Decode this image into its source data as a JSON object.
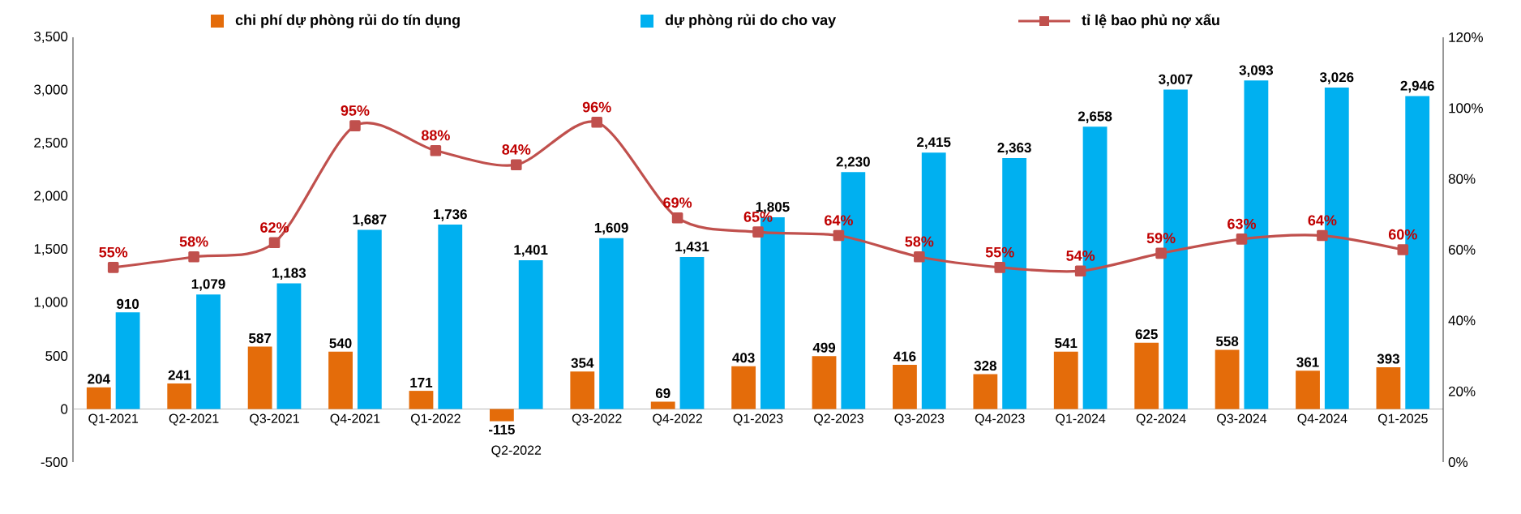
{
  "chart_data": {
    "type": "bar",
    "categories": [
      "Q1-2021",
      "Q2-2021",
      "Q3-2021",
      "Q4-2021",
      "Q1-2022",
      "Q2-2022",
      "Q3-2022",
      "Q4-2022",
      "Q1-2023",
      "Q2-2023",
      "Q3-2023",
      "Q4-2023",
      "Q1-2024",
      "Q2-2024",
      "Q3-2024",
      "Q4-2024",
      "Q1-2025"
    ],
    "series": [
      {
        "name": "chi phí dự phòng rủi do tín dụng",
        "color": "#e46c0a",
        "values": [
          204,
          241,
          587,
          540,
          171,
          -115,
          354,
          69,
          403,
          499,
          416,
          328,
          541,
          625,
          558,
          361,
          393
        ],
        "value_labels": [
          "204",
          "241",
          "587",
          "540",
          "171",
          "-115",
          "354",
          "69",
          "403",
          "499",
          "416",
          "328",
          "541",
          "625",
          "558",
          "361",
          "393"
        ]
      },
      {
        "name": "dự phòng rủi do cho vay",
        "color": "#00b0f0",
        "values": [
          910,
          1079,
          1183,
          1687,
          1736,
          1401,
          1609,
          1431,
          1805,
          2230,
          2415,
          2363,
          2658,
          3007,
          3093,
          3026,
          2946
        ],
        "value_labels": [
          "910",
          "1,079",
          "1,183",
          "1,687",
          "1,736",
          "1,401",
          "1,609",
          "1,431",
          "1,805",
          "2,230",
          "2,415",
          "2,363",
          "2,658",
          "3,007",
          "3,093",
          "3,026",
          "2,946"
        ]
      },
      {
        "name": "tỉ lệ bao phủ nợ xấu",
        "type": "line",
        "axis": "y2",
        "color": "#c0504d",
        "marker": "square",
        "line_style": "solid",
        "values": [
          55,
          58,
          62,
          95,
          88,
          84,
          96,
          69,
          65,
          64,
          58,
          55,
          54,
          59,
          63,
          64,
          60
        ],
        "value_labels": [
          "55%",
          "58%",
          "62%",
          "95%",
          "88%",
          "84%",
          "96%",
          "69%",
          "65%",
          "64%",
          "58%",
          "55%",
          "54%",
          "59%",
          "63%",
          "64%",
          "60%"
        ]
      }
    ],
    "ylim": [
      -500,
      3500
    ],
    "yticks": [
      {
        "value": -500,
        "label": "-500"
      },
      {
        "value": 0,
        "label": "0"
      },
      {
        "value": 500,
        "label": "500"
      },
      {
        "value": 1000,
        "label": "1,000"
      },
      {
        "value": 1500,
        "label": "1,500"
      },
      {
        "value": 2000,
        "label": "2,000"
      },
      {
        "value": 2500,
        "label": "2,500"
      },
      {
        "value": 3000,
        "label": "3,000"
      },
      {
        "value": 3500,
        "label": "3,500"
      }
    ],
    "y2lim": [
      0,
      120
    ],
    "y2ticks": [
      {
        "value": 0,
        "label": "0%"
      },
      {
        "value": 20,
        "label": "20%"
      },
      {
        "value": 40,
        "label": "40%"
      },
      {
        "value": 60,
        "label": "60%"
      },
      {
        "value": 80,
        "label": "80%"
      },
      {
        "value": 100,
        "label": "100%"
      },
      {
        "value": 120,
        "label": "120%"
      }
    ],
    "legend": "top"
  }
}
